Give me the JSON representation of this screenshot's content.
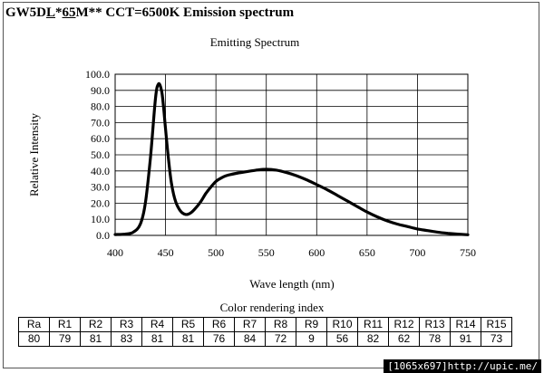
{
  "heading": {
    "part1": "GW5D",
    "part2": "L",
    "part3": "*",
    "part4": "65",
    "part5": "M** CCT=6500K Emission spectrum"
  },
  "chart_data": {
    "type": "line",
    "title": "Emitting Spectrum",
    "xlabel": "Wave length (nm)",
    "ylabel": "Relative Intensity",
    "xlim": [
      400,
      750
    ],
    "ylim": [
      0,
      100
    ],
    "xticks": [
      "400",
      "450",
      "500",
      "550",
      "600",
      "650",
      "700",
      "750"
    ],
    "yticks": [
      "0.0",
      "10.0",
      "20.0",
      "30.0",
      "40.0",
      "50.0",
      "60.0",
      "70.0",
      "80.0",
      "90.0",
      "100.0"
    ],
    "grid": true,
    "series": [
      {
        "name": "Emission spectrum",
        "x": [
          400,
          410,
          418,
          425,
          430,
          435,
          440,
          443,
          446,
          448,
          450,
          453,
          456,
          460,
          465,
          470,
          475,
          480,
          485,
          490,
          495,
          500,
          505,
          510,
          520,
          530,
          540,
          550,
          560,
          570,
          580,
          590,
          600,
          610,
          620,
          630,
          640,
          650,
          660,
          670,
          680,
          690,
          700,
          710,
          720,
          730,
          740,
          750
        ],
        "y": [
          0.5,
          0.8,
          2,
          7,
          20,
          48,
          85,
          94,
          90,
          80,
          66,
          47,
          32,
          21,
          15,
          13,
          14,
          17,
          21,
          26,
          30,
          33.5,
          35.5,
          37,
          38.5,
          39.5,
          40.5,
          41,
          40.5,
          39,
          37,
          34.5,
          31.5,
          28.5,
          25,
          21.5,
          18,
          14.5,
          11.5,
          9,
          7,
          5.5,
          4,
          3,
          2,
          1.3,
          0.8,
          0.4
        ]
      }
    ]
  },
  "cri": {
    "title": "Color rendering index",
    "headers": [
      "Ra",
      "R1",
      "R2",
      "R3",
      "R4",
      "R5",
      "R6",
      "R7",
      "R8",
      "R9",
      "R10",
      "R11",
      "R12",
      "R13",
      "R14",
      "R15"
    ],
    "values": [
      "80",
      "79",
      "81",
      "83",
      "81",
      "81",
      "76",
      "84",
      "72",
      "9",
      "56",
      "82",
      "62",
      "78",
      "91",
      "73"
    ]
  },
  "watermark": "[1065x697]http://upic.me/"
}
